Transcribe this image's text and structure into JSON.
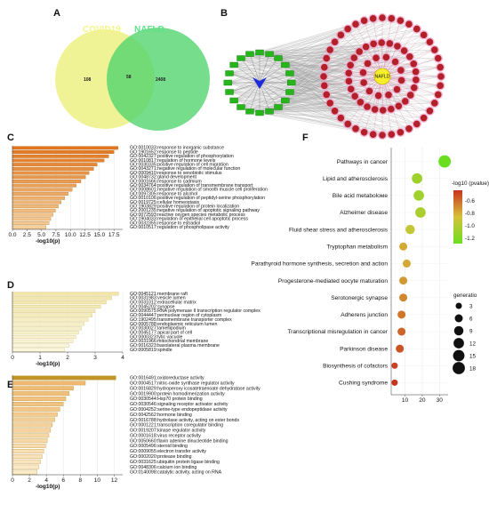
{
  "panels": {
    "a": {
      "label": "A",
      "set_left": "COVID19",
      "set_right": "NAFLD",
      "only_left": "108",
      "overlap": "58",
      "only_right": "2408",
      "colors": {
        "left": "#eef28a",
        "right": "#4fd36b",
        "left_text": "#f3f58a",
        "right_text": "#5fe08a"
      }
    },
    "b": {
      "label": "B",
      "hub": "NAFLD",
      "node_colors": {
        "target": "#b3202a",
        "drug": "#27b51c",
        "center": "#1a2ad8",
        "hub": "#f5ee2a",
        "ring": "#f0a0c8"
      }
    },
    "c": {
      "label": "C"
    },
    "d": {
      "label": "D"
    },
    "e": {
      "label": "E"
    },
    "f": {
      "label": "F"
    }
  },
  "chart_data": [
    {
      "panel": "C",
      "type": "bar",
      "orientation": "horizontal",
      "xlabel": "-log10(p)",
      "xticks": [
        "0.0",
        "2.5",
        "5.0",
        "7.5",
        "10.0",
        "12.5",
        "15.0",
        "17.5"
      ],
      "xlim": [
        0,
        19
      ],
      "categories": [
        "GO:0010033:response to inorganic substance",
        "GO:1901652:response to peptide",
        "GO:0042327:positive regulation of phosphorylation",
        "GO:0010817:regulation of hormone levels",
        "GO:0030335:positive regulation of cell migration",
        "GO:0043271:negative regulation of molecular function",
        "GO:0009410:response to xenobiotic stimulus",
        "GO:0048732:gland development",
        "GO:0001666:response to cadmium",
        "GO:0034764:positive regulation of transmembrane transport",
        "GO:0008601:negative regulation of smooth muscle cell proliferation",
        "GO:0097305:response to alcohol",
        "GO:0010106:positive regulation of peptidyl-serine phosphorylation",
        "GO:0019725:cellular homeostasis",
        "GO:1903829:positive regulation of protein localization",
        "GO:2001235:negative regulation of apoptotic signaling pathway",
        "GO:0072593:reactive oxygen species metabolic process",
        "GO:1904033:regulation of epithelial cell apoptotic process",
        "GO:0032355:response to estradiol",
        "GO:0010517:regulation of phospholipase activity"
      ],
      "values": [
        18.2,
        17.5,
        16.6,
        15.8,
        14.6,
        14.0,
        13.2,
        12.6,
        11.8,
        11.0,
        10.3,
        9.6,
        9.0,
        8.4,
        7.9,
        7.4,
        7.0,
        6.6,
        6.3,
        5.8
      ]
    },
    {
      "panel": "D",
      "type": "bar",
      "orientation": "horizontal",
      "xlabel": "-log10(p)",
      "xticks": [
        "0",
        "1",
        "2",
        "3",
        "4"
      ],
      "xlim": [
        0,
        4
      ],
      "categories": [
        "GO:0045121:membrane raft",
        "GO:0031983:vesicle lumen",
        "GO:0031012:extracellular matrix",
        "GO:0045202:synapse",
        "GO:0090575:RNA polymerase II transcription regulator complex",
        "GO:0044447:perinuclear region of cytoplasm",
        "GO:1902495:transmembrane transporter complex",
        "GO:0005788:endoplasmic reticulum lumen",
        "GO:0030027:lamellipodium",
        "GO:0045177:apical part of cell",
        "GO:0000323:lytic vacuole",
        "GO:0031966:mitochondrial membrane",
        "GO:0016323:basolateral plasma membrane",
        "GO:0005819:spindle"
      ],
      "values": [
        3.85,
        3.6,
        3.4,
        3.2,
        3.0,
        2.9,
        2.75,
        2.6,
        2.5,
        2.4,
        2.3,
        2.2,
        2.05,
        1.9
      ]
    },
    {
      "panel": "E",
      "type": "bar",
      "orientation": "horizontal",
      "xlabel": "-log10(p)",
      "xticks": [
        "0",
        "2",
        "4",
        "6",
        "8",
        "10",
        "12"
      ],
      "xlim": [
        0,
        13
      ],
      "categories": [
        "GO:0016491:oxidoreductase activity",
        "GO:0004517:nitric-oxide synthase regulator activity",
        "GO:0016829:hydroperoxy icosatetraenoate dehydratase activity",
        "GO:0019900:protein homodimerization activity",
        "GO:0030544:Hsp70 protein binding",
        "GO:0030546:signaling receptor activator activity",
        "GO:0004252:serine-type endopeptidase activity",
        "GO:0042562:hormone binding",
        "GO:0016788:hydrolase activity, acting on ester bonds",
        "GO:0001221:transcription coregulator binding",
        "GO:0019207:kinase regulator activity",
        "GO:0001618:virus receptor activity",
        "GO:0050660:flavin adenine dinucleotide binding",
        "GO:0005496:steroid binding",
        "GO:0009055:electron transfer activity",
        "GO:0002020:protease binding",
        "GO:0031625:ubiquitin protein ligase binding",
        "GO:0048306:calcium ion binding",
        "GO:0140098:catalytic activity, acting on RNA"
      ],
      "values": [
        12.2,
        8.6,
        7.2,
        6.7,
        6.3,
        6.0,
        5.6,
        5.3,
        5.0,
        4.7,
        4.5,
        4.3,
        4.1,
        3.9,
        3.7,
        3.5,
        3.3,
        3.1,
        2.9
      ]
    },
    {
      "panel": "F",
      "type": "scatter",
      "subtype": "bubble",
      "xticks": [
        "10",
        "20",
        "30"
      ],
      "xlim": [
        2,
        35
      ],
      "categories": [
        "Pathways in cancer",
        "Lipid and atherosclerosis",
        "Bile acid metaboloме",
        "Alzheimer disease",
        "Fluid shear stress and atherosclerosis",
        "Tryptophan metabolism",
        "Parathyroid hormone synthesis, secretion and action",
        "Progesterone-mediated oocyte maturation",
        "Serotonergic synapse",
        "Adherens junction",
        "Transcriptional misregulation in cancer",
        "Parkinson disease",
        "Biosynthesis of cofactors",
        "Cushing syndrome"
      ],
      "x": [
        33,
        17,
        18,
        19,
        13,
        9,
        11,
        9,
        9,
        8,
        8,
        7,
        4,
        4
      ],
      "size": [
        18,
        12,
        12,
        12,
        9,
        6,
        6,
        6,
        6,
        6,
        6,
        6,
        3,
        3
      ],
      "color_value": [
        -1.25,
        -1.05,
        -1.05,
        -1.0,
        -0.9,
        -0.75,
        -0.75,
        -0.7,
        -0.65,
        -0.6,
        -0.55,
        -0.5,
        -0.45,
        -0.4
      ],
      "colorbar_title": "-log10 (pvalue)",
      "colorbar_ticks": [
        "-0.6",
        "-0.8",
        "-1.0",
        "-1.2"
      ],
      "size_legend_title": "generatio",
      "size_legend": [
        "3",
        "6",
        "9",
        "12",
        "15",
        "18"
      ],
      "colors": {
        "low": "#6cde20",
        "mid": "#d6c23a",
        "high": "#c8321e"
      }
    }
  ]
}
